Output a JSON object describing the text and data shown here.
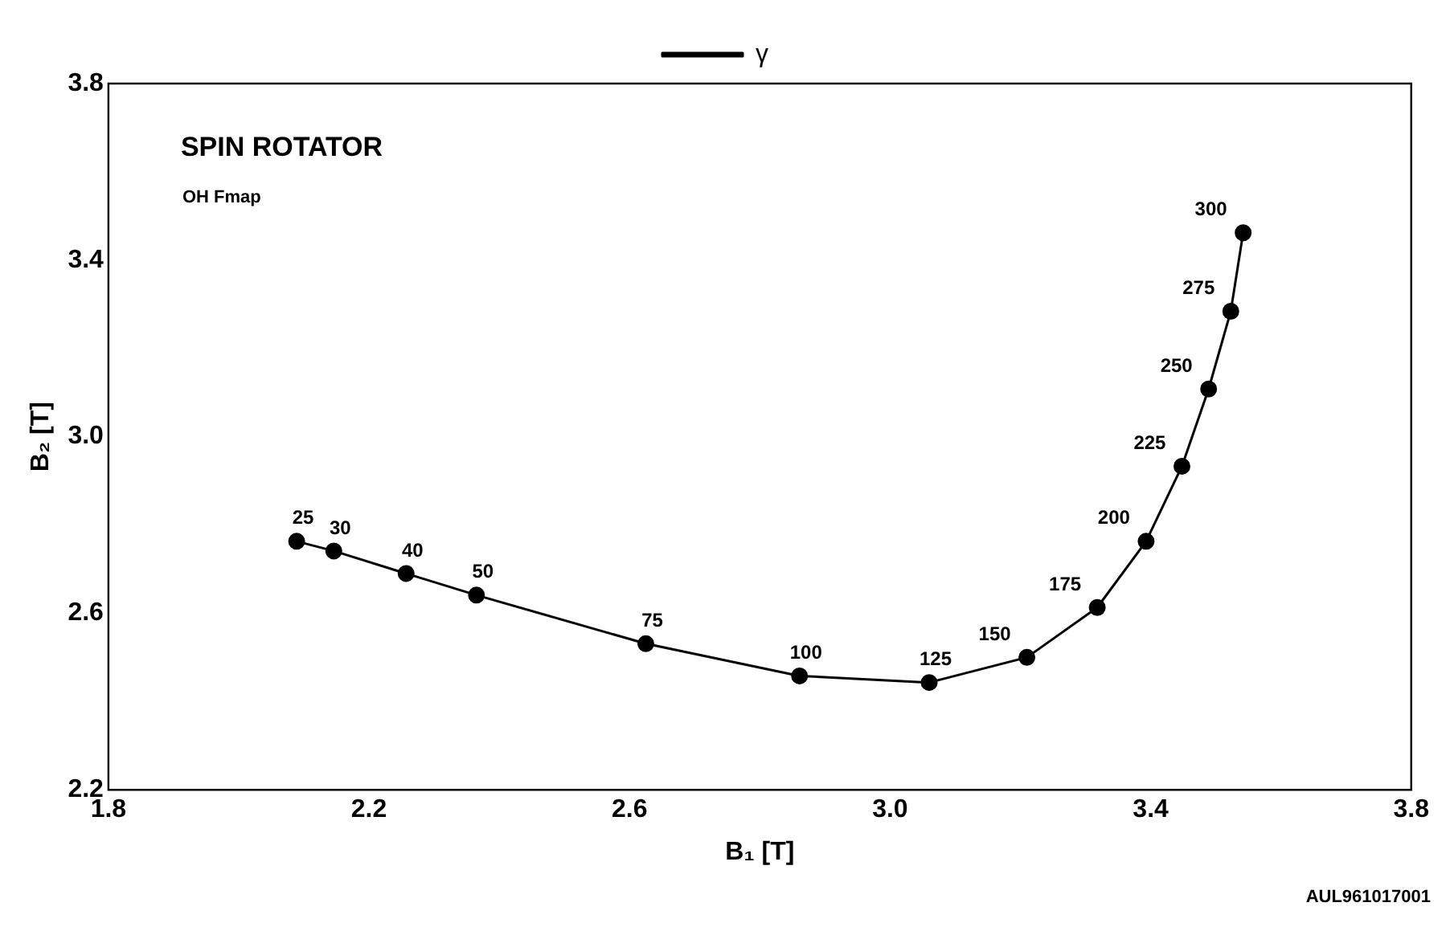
{
  "chart_data": {
    "type": "line",
    "title": "SPIN ROTATOR",
    "subtitle": "OH Fmap",
    "xlabel": "B₁ [T]",
    "ylabel": "B₂ [T]",
    "series": [
      {
        "name": "γ",
        "color": "#000000",
        "x": [
          2.089,
          2.146,
          2.257,
          2.365,
          2.625,
          2.861,
          3.06,
          3.21,
          3.318,
          3.393,
          3.448,
          3.489,
          3.523,
          3.542
        ],
        "values": [
          2.763,
          2.741,
          2.69,
          2.641,
          2.531,
          2.458,
          2.443,
          2.5,
          2.613,
          2.763,
          2.933,
          3.108,
          3.284,
          3.462
        ]
      }
    ],
    "annotations": [
      {
        "text": "25",
        "x": 2.089,
        "y": 2.763
      },
      {
        "text": "30",
        "x": 2.146,
        "y": 2.741
      },
      {
        "text": "40",
        "x": 2.257,
        "y": 2.69
      },
      {
        "text": "50",
        "x": 2.365,
        "y": 2.641
      },
      {
        "text": "75",
        "x": 2.625,
        "y": 2.531
      },
      {
        "text": "100",
        "x": 2.861,
        "y": 2.458
      },
      {
        "text": "125",
        "x": 3.06,
        "y": 2.443
      },
      {
        "text": "150",
        "x": 3.21,
        "y": 2.5
      },
      {
        "text": "175",
        "x": 3.318,
        "y": 2.613
      },
      {
        "text": "200",
        "x": 3.393,
        "y": 2.763
      },
      {
        "text": "225",
        "x": 3.448,
        "y": 2.933
      },
      {
        "text": "250",
        "x": 3.489,
        "y": 3.108
      },
      {
        "text": "275",
        "x": 3.523,
        "y": 3.284
      },
      {
        "text": "300",
        "x": 3.542,
        "y": 3.462
      },
      "AUL961017001"
    ],
    "xlim": [
      1.8,
      3.8
    ],
    "xticks": [
      {
        "value": 1.8,
        "label": "1.8"
      },
      {
        "value": 2.2,
        "label": "2.2"
      },
      {
        "value": 2.6,
        "label": "2.6"
      },
      {
        "value": 3.0,
        "label": "3.0"
      },
      {
        "value": 3.4,
        "label": "3.4"
      },
      {
        "value": 3.8,
        "label": "3.8"
      }
    ],
    "ylim": [
      2.2,
      3.8
    ],
    "yticks": [
      {
        "value": 2.2,
        "label": "2.2"
      },
      {
        "value": 2.6,
        "label": "2.6"
      },
      {
        "value": 3.0,
        "label": "3.0"
      },
      {
        "value": 3.4,
        "label": "3.4"
      },
      {
        "value": 3.8,
        "label": "3.8"
      }
    ],
    "legend": "top",
    "marker": "circle",
    "line_style": "solid",
    "grid": false
  }
}
